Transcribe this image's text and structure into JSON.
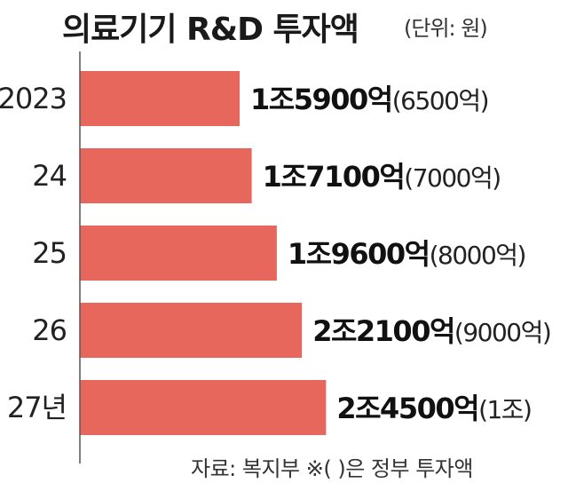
{
  "chart_data": {
    "type": "bar",
    "orientation": "horizontal",
    "title": "의료기기 R&D 투자액",
    "unit_note": "(단위: 원)",
    "categories": [
      "2023",
      "24",
      "25",
      "26",
      "27년"
    ],
    "values": [
      15900,
      17100,
      19600,
      22100,
      24500
    ],
    "value_labels": [
      "1조5900억",
      "1조7100억",
      "1조9600억",
      "2조2100억",
      "2조4500억"
    ],
    "gov_labels": [
      "(6500억)",
      "(7000억)",
      "(8000억)",
      "(9000억)",
      "(1조)"
    ],
    "xlim": [
      0,
      28000
    ],
    "bar_color": "#e8675c",
    "grid": false,
    "legend": "none",
    "source": "자료: 복지부 ※( )은 정부 투자액"
  }
}
